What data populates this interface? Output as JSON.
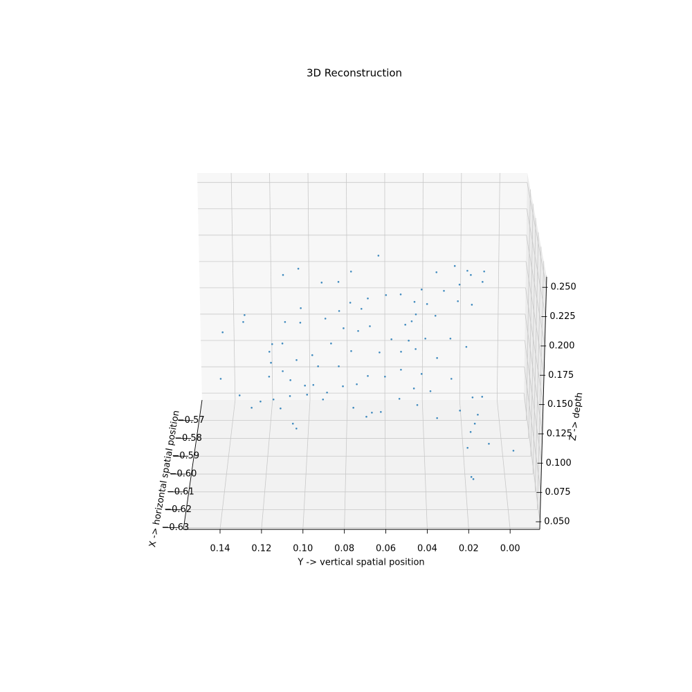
{
  "chart_data": {
    "type": "scatter3d",
    "title": "3D Reconstruction",
    "xlabel": "X -> horizontal spatial position",
    "ylabel": "Y -> vertical spatial position",
    "zlabel": "Z -> depth",
    "xlim": [
      -0.631,
      -0.5585
    ],
    "ylim": [
      0.1577,
      -0.0143
    ],
    "zlim": [
      0.0435,
      0.259
    ],
    "xticks": [
      {
        "value": -0.63,
        "label": "−0.63"
      },
      {
        "value": -0.62,
        "label": "−0.62"
      },
      {
        "value": -0.61,
        "label": "−0.61"
      },
      {
        "value": -0.6,
        "label": "−0.60"
      },
      {
        "value": -0.59,
        "label": "−0.59"
      },
      {
        "value": -0.58,
        "label": "−0.58"
      },
      {
        "value": -0.57,
        "label": "−0.57"
      }
    ],
    "yticks": [
      0.14,
      0.12,
      {
        "value": 0.1,
        "label": "0.10"
      },
      0.08,
      0.06,
      0.04,
      0.02,
      {
        "value": 0,
        "label": "0.00"
      }
    ],
    "zticks": [
      {
        "value": 0.05,
        "label": "0.050"
      },
      0.075,
      {
        "value": 0.1,
        "label": "0.100"
      },
      0.125,
      {
        "value": 0.15,
        "label": "0.150"
      },
      0.175,
      {
        "value": 0.2,
        "label": "0.200"
      },
      0.225,
      {
        "value": 0.25,
        "label": "0.250"
      }
    ],
    "grid": true,
    "series": [
      {
        "color": "#1f77b4",
        "x": [
          -0.609,
          -0.609,
          -0.609,
          -0.609,
          -0.609,
          -0.609,
          -0.609,
          -0.609,
          -0.609,
          -0.609,
          -0.609,
          -0.609,
          -0.609,
          -0.609,
          -0.609,
          -0.609,
          -0.609,
          -0.609,
          -0.609,
          -0.609,
          -0.609,
          -0.609,
          -0.609,
          -0.609,
          -0.609,
          -0.609,
          -0.609,
          -0.609,
          -0.609,
          -0.609,
          -0.609,
          -0.609,
          -0.609,
          -0.609,
          -0.609,
          -0.609,
          -0.609,
          -0.609,
          -0.609,
          -0.609,
          -0.609,
          -0.609,
          -0.609,
          -0.609,
          -0.609,
          -0.609,
          -0.609,
          -0.609,
          -0.609,
          -0.609,
          -0.609,
          -0.609,
          -0.609,
          -0.609,
          -0.609,
          -0.609,
          -0.609,
          -0.609,
          -0.609,
          -0.609,
          -0.609,
          -0.609,
          -0.609,
          -0.609,
          -0.609,
          -0.609,
          -0.609,
          -0.609,
          -0.609,
          -0.609,
          -0.609,
          -0.609,
          -0.609,
          -0.609,
          -0.609,
          -0.609,
          -0.609,
          -0.609,
          -0.609,
          -0.609,
          -0.609,
          -0.609,
          -0.609,
          -0.609,
          -0.609,
          -0.609,
          -0.609,
          -0.609,
          -0.609,
          -0.609,
          -0.609,
          -0.609,
          -0.609,
          -0.609,
          -0.609,
          -0.609,
          -0.609,
          -0.609,
          -0.609,
          -0.609,
          -0.609,
          -0.609
        ],
        "y": [
          0.0637,
          0.1023,
          0.1097,
          0.0769,
          0.0911,
          0.083,
          0.0269,
          0.0208,
          0.0127,
          0.0134,
          0.0191,
          0.0357,
          0.0428,
          0.032,
          0.0245,
          0.0529,
          0.0462,
          0.0401,
          0.0184,
          0.0252,
          0.036,
          0.0455,
          0.0475,
          0.0506,
          0.06,
          0.0688,
          0.0719,
          0.0773,
          0.0827,
          0.0894,
          0.1013,
          0.109,
          0.1016,
          0.1286,
          0.1293,
          0.1394,
          0.0806,
          0.0678,
          0.0735,
          0.0573,
          0.0489,
          0.0408,
          0.0286,
          0.0208,
          0.035,
          0.0455,
          0.0526,
          0.0631,
          0.0769,
          0.0867,
          0.0959,
          0.1036,
          0.1104,
          0.1154,
          0.1168,
          0.1161,
          0.1104,
          0.1171,
          0.1067,
          0.0931,
          0.083,
          0.0688,
          0.0604,
          0.0526,
          0.0425,
          0.0279,
          0.1408,
          0.0996,
          0.0955,
          0.081,
          0.0742,
          0.0462,
          0.0381,
          0.0888,
          0.0986,
          0.107,
          0.1317,
          0.1151,
          0.0908,
          0.0533,
          0.0174,
          0.0127,
          0.1215,
          0.1259,
          0.1117,
          0.0759,
          0.0668,
          0.0624,
          0.0445,
          0.0235,
          0.0147,
          0.0695,
          0.0347,
          0.1057,
          0.104,
          0.0161,
          0.0181,
          0.009,
          0.0195,
          -0.0032,
          0.0174,
          0.0164
        ],
        "z": [
          0.2499,
          0.2384,
          0.2329,
          0.2359,
          0.2262,
          0.2268,
          0.2408,
          0.2366,
          0.236,
          0.2268,
          0.2329,
          0.2353,
          0.2201,
          0.2189,
          0.2244,
          0.2158,
          0.2092,
          0.2073,
          0.2067,
          0.2098,
          0.197,
          0.1982,
          0.1921,
          0.1891,
          0.2152,
          0.2122,
          0.2031,
          0.2085,
          0.2012,
          0.1945,
          0.2037,
          0.1915,
          0.1909,
          0.1976,
          0.1915,
          0.1824,
          0.186,
          0.1878,
          0.1836,
          0.1763,
          0.1751,
          0.1769,
          0.1769,
          0.1696,
          0.1598,
          0.1677,
          0.1653,
          0.1647,
          0.1659,
          0.1726,
          0.1623,
          0.158,
          0.1726,
          0.172,
          0.1653,
          0.1556,
          0.1482,
          0.1434,
          0.1403,
          0.1525,
          0.1525,
          0.144,
          0.1434,
          0.1495,
          0.1458,
          0.1415,
          0.1415,
          0.1355,
          0.1361,
          0.1349,
          0.1367,
          0.133,
          0.1306,
          0.1294,
          0.1275,
          0.1263,
          0.1269,
          0.1233,
          0.1233,
          0.1239,
          0.1251,
          0.1257,
          0.1215,
          0.116,
          0.1154,
          0.116,
          0.1117,
          0.1123,
          0.1184,
          0.1135,
          0.1099,
          0.1081,
          0.1069,
          0.102,
          0.0977,
          0.102,
          0.0947,
          0.0843,
          0.0807,
          0.0782,
          0.0551,
          0.0532
        ]
      }
    ]
  }
}
